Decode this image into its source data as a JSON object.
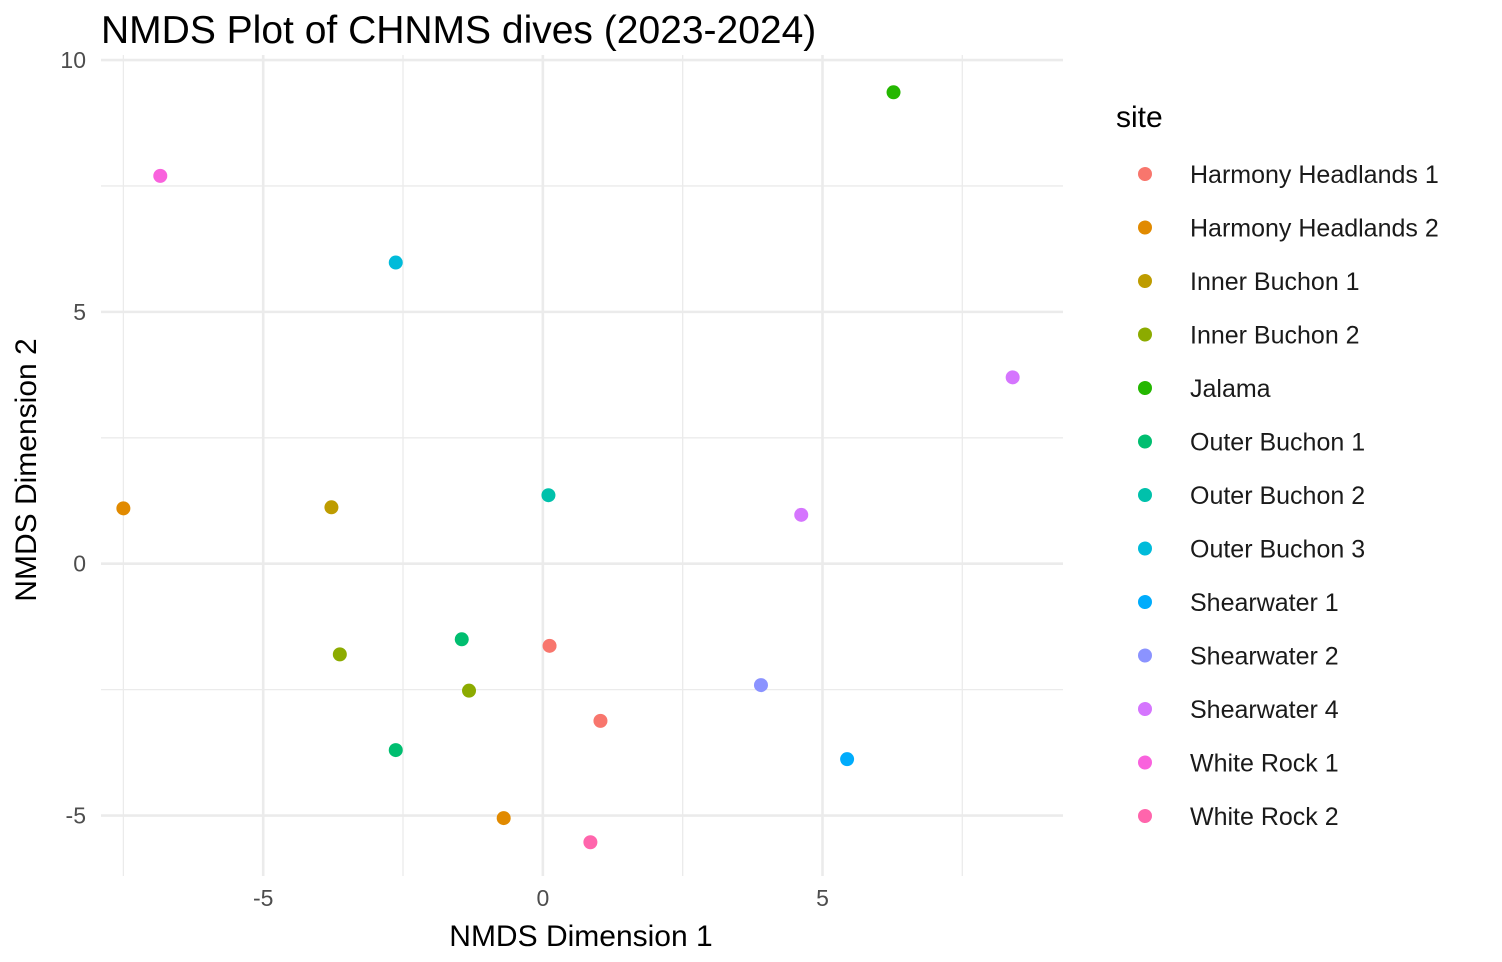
{
  "chart_data": {
    "type": "scatter",
    "title": "NMDS Plot of CHNMS dives (2023-2024)",
    "xlabel": "NMDS Dimension 1",
    "ylabel": "NMDS Dimension 2",
    "xlim": [
      -7.9,
      9.3
    ],
    "ylim": [
      -6.2,
      10.1
    ],
    "x_ticks": [
      -5,
      0,
      5
    ],
    "y_ticks": [
      -5,
      0,
      5,
      10
    ],
    "x_tick_labels": [
      "-5",
      "0",
      "5"
    ],
    "y_tick_labels": [
      "-5",
      "0",
      "5",
      "10"
    ],
    "grid": true,
    "legend": {
      "title": "site",
      "position": "right"
    },
    "series": [
      {
        "name": "Harmony Headlands 1",
        "color": "#F8766D",
        "points": [
          [
            0.12,
            -1.63
          ],
          [
            1.03,
            -3.12
          ]
        ]
      },
      {
        "name": "Harmony Headlands 2",
        "color": "#E18A00",
        "points": [
          [
            -7.5,
            1.1
          ],
          [
            -0.7,
            -5.05
          ]
        ]
      },
      {
        "name": "Inner Buchon 1",
        "color": "#BE9C00",
        "points": [
          [
            -3.78,
            1.12
          ]
        ]
      },
      {
        "name": "Inner Buchon 2",
        "color": "#8CAB00",
        "points": [
          [
            -3.63,
            -1.8
          ],
          [
            -1.32,
            -2.52
          ]
        ]
      },
      {
        "name": "Jalama",
        "color": "#24B700",
        "points": [
          [
            6.27,
            9.36
          ]
        ]
      },
      {
        "name": "Outer Buchon 1",
        "color": "#00BE70",
        "points": [
          [
            -1.45,
            -1.5
          ],
          [
            -2.63,
            -3.7
          ]
        ]
      },
      {
        "name": "Outer Buchon 2",
        "color": "#00C1AB",
        "points": [
          [
            0.1,
            1.36
          ]
        ]
      },
      {
        "name": "Outer Buchon 3",
        "color": "#00BBDA",
        "points": [
          [
            -2.63,
            5.98
          ]
        ]
      },
      {
        "name": "Shearwater 1",
        "color": "#00ACFC",
        "points": [
          [
            5.44,
            -3.88
          ]
        ]
      },
      {
        "name": "Shearwater 2",
        "color": "#8B93FF",
        "points": [
          [
            3.9,
            -2.41
          ]
        ]
      },
      {
        "name": "Shearwater 4",
        "color": "#D575FE",
        "points": [
          [
            8.4,
            3.7
          ],
          [
            4.62,
            0.97
          ]
        ]
      },
      {
        "name": "White Rock 1",
        "color": "#F962DD",
        "points": [
          [
            -6.84,
            7.7
          ]
        ]
      },
      {
        "name": "White Rock 2",
        "color": "#FF65AC",
        "points": [
          [
            0.85,
            -5.53
          ]
        ]
      }
    ]
  }
}
